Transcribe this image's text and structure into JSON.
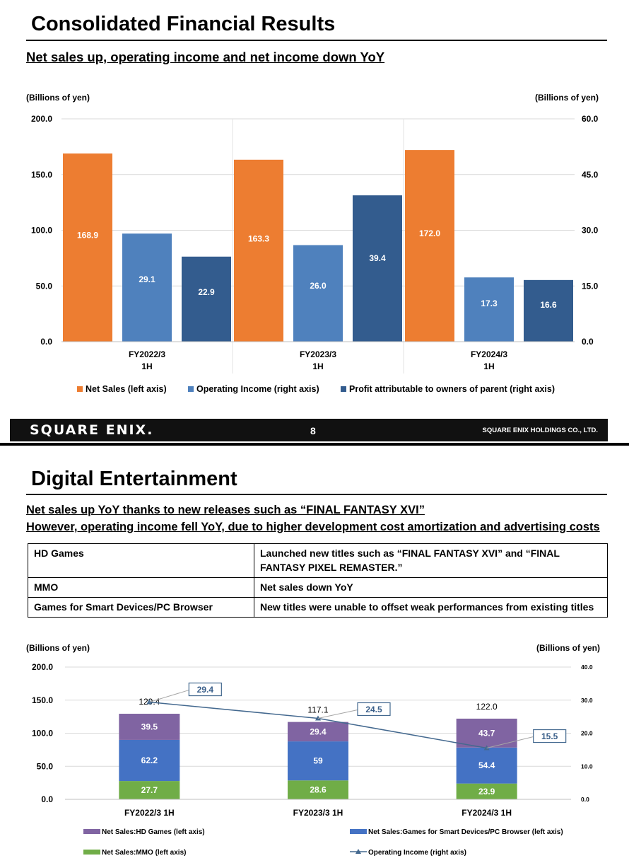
{
  "slide1": {
    "title": "Consolidated Financial Results",
    "subtitle": "Net sales up, operating income and net income down YoY",
    "left_axis_unit": "(Billions of yen)",
    "right_axis_unit": "(Billions of yen)",
    "footer": {
      "logo": "SQUARE ENIX.",
      "page": "8",
      "company": "SQUARE ENIX HOLDINGS CO., LTD."
    }
  },
  "slide2": {
    "title": "Digital Entertainment",
    "subtitle_lines": [
      "Net sales up YoY thanks to new releases such as “FINAL FANTASY XVI”",
      "However, operating income fell YoY, due to higher development cost amortization and advertising costs"
    ],
    "table": [
      {
        "segment": "HD Games",
        "note": "Launched new titles such as “FINAL FANTASY XVI” and “FINAL FANTASY PIXEL REMASTER.”"
      },
      {
        "segment": "MMO",
        "note": "Net sales down YoY"
      },
      {
        "segment": "Games for Smart Devices/PC Browser",
        "note": "New titles were unable to offset weak performances from existing titles"
      }
    ],
    "left_axis_unit": "(Billions of yen)",
    "right_axis_unit": "(Billions of yen)"
  },
  "chart_data": [
    {
      "type": "bar",
      "categories": [
        "FY2022/3\n1H",
        "FY2023/3\n1H",
        "FY2024/3\n1H"
      ],
      "series": [
        {
          "name": "Net Sales (left axis)",
          "axis": "left",
          "color": "#ED7D31",
          "values": [
            168.9,
            163.3,
            172.0
          ],
          "labels": [
            "168.9",
            "163.3",
            "172.0"
          ]
        },
        {
          "name": "Operating Income (right axis)",
          "axis": "right",
          "color": "#4F81BD",
          "values": [
            29.1,
            26.0,
            17.3
          ],
          "labels": [
            "29.1",
            "26.0",
            "17.3"
          ]
        },
        {
          "name": "Profit attributable to owners of parent (right axis)",
          "axis": "right",
          "color": "#335C8E",
          "values": [
            22.9,
            39.4,
            16.6
          ],
          "labels": [
            "22.9",
            "39.4",
            "16.6"
          ]
        }
      ],
      "ylim_left": [
        0,
        200
      ],
      "yticks_left": [
        "0.0",
        "50.0",
        "100.0",
        "150.0",
        "200.0"
      ],
      "ylim_right": [
        0,
        60
      ],
      "yticks_right": [
        "0.0",
        "15.0",
        "30.0",
        "45.0",
        "60.0"
      ],
      "ylabel": "(Billions of yen)",
      "y2label": "(Billions of yen)",
      "legend": "bottom",
      "grid": true
    },
    {
      "type": "bar",
      "stacked": true,
      "categories": [
        "FY2022/3 1H",
        "FY2023/3 1H",
        "FY2024/3 1H"
      ],
      "series": [
        {
          "name": "Net Sales:MMO (left axis)",
          "axis": "left",
          "color": "#70AD47",
          "values": [
            27.7,
            28.6,
            23.9
          ],
          "labels": [
            "27.7",
            "28.6",
            "23.9"
          ]
        },
        {
          "name": "Net Sales:Games for Smart Devices/PC Browser (left axis)",
          "axis": "left",
          "color": "#4472C4",
          "values": [
            62.2,
            59,
            54.4
          ],
          "labels": [
            "62.2",
            "59",
            "54.4"
          ]
        },
        {
          "name": "Net Sales:HD Games (left axis)",
          "axis": "left",
          "color": "#8064A2",
          "values": [
            39.5,
            29.4,
            43.7
          ],
          "labels": [
            "39.5",
            "29.4",
            "43.7"
          ]
        }
      ],
      "totals": [
        129.4,
        117.1,
        122.0
      ],
      "total_labels": [
        "129.4",
        "117.1",
        "122.0"
      ],
      "line": {
        "name": "Operating Income (right axis)",
        "axis": "right",
        "color": "#44698F",
        "values": [
          29.4,
          24.5,
          15.5
        ],
        "labels": [
          "29.4",
          "24.5",
          "15.5"
        ]
      },
      "ylim_left": [
        0,
        200
      ],
      "yticks_left": [
        "0.0",
        "50.0",
        "100.0",
        "150.0",
        "200.0"
      ],
      "ylim_right": [
        0,
        40
      ],
      "yticks_right": [
        "0.0",
        "10.0",
        "20.0",
        "30.0",
        "40.0"
      ],
      "ylabel": "(Billions of yen)",
      "y2label": "(Billions of yen)",
      "legend": "bottom",
      "grid": true
    }
  ]
}
